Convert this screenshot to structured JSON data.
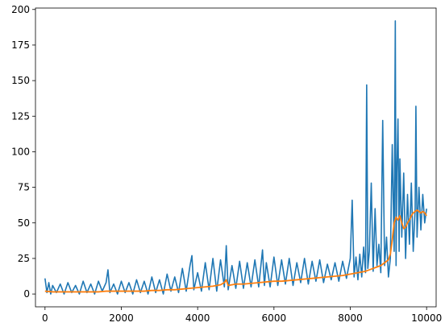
{
  "chart_data": {
    "type": "line",
    "title": "",
    "xlabel": "",
    "ylabel": "",
    "xlim": [
      -250,
      10250
    ],
    "ylim": [
      -9,
      201
    ],
    "x_ticks": [
      0,
      2000,
      4000,
      6000,
      8000,
      10000
    ],
    "y_ticks": [
      0,
      25,
      50,
      75,
      100,
      125,
      150,
      175,
      200
    ],
    "grid": false,
    "legend": "none",
    "series": [
      {
        "color": "#1f77b4",
        "description": "per-episode value (noisy)",
        "x": [
          0,
          50,
          100,
          150,
          200,
          300,
          400,
          500,
          600,
          700,
          800,
          900,
          1000,
          1100,
          1200,
          1300,
          1400,
          1500,
          1600,
          1650,
          1700,
          1800,
          1900,
          2000,
          2100,
          2200,
          2300,
          2400,
          2500,
          2600,
          2700,
          2800,
          2900,
          3000,
          3100,
          3200,
          3300,
          3400,
          3500,
          3600,
          3700,
          3800,
          3850,
          3900,
          4000,
          4100,
          4200,
          4300,
          4400,
          4500,
          4600,
          4700,
          4750,
          4800,
          4900,
          5000,
          5100,
          5200,
          5300,
          5400,
          5500,
          5600,
          5700,
          5750,
          5800,
          5900,
          6000,
          6100,
          6200,
          6300,
          6400,
          6500,
          6600,
          6700,
          6800,
          6900,
          7000,
          7100,
          7200,
          7300,
          7400,
          7500,
          7600,
          7700,
          7800,
          7900,
          8000,
          8050,
          8100,
          8150,
          8200,
          8250,
          8300,
          8350,
          8400,
          8430,
          8460,
          8500,
          8550,
          8600,
          8650,
          8700,
          8750,
          8800,
          8850,
          8900,
          8950,
          9000,
          9050,
          9100,
          9150,
          9180,
          9200,
          9220,
          9250,
          9280,
          9300,
          9350,
          9400,
          9450,
          9500,
          9550,
          9600,
          9650,
          9700,
          9720,
          9750,
          9800,
          9850,
          9900,
          9950,
          10000
        ],
        "y": [
          11,
          1,
          8,
          0,
          6,
          1,
          7,
          0,
          8,
          1,
          6,
          0,
          9,
          1,
          7,
          0,
          9,
          2,
          8,
          17,
          1,
          7,
          0,
          9,
          1,
          8,
          0,
          10,
          1,
          9,
          0,
          12,
          1,
          10,
          0,
          14,
          2,
          12,
          1,
          18,
          2,
          20,
          27,
          3,
          15,
          2,
          22,
          3,
          25,
          2,
          24,
          5,
          34,
          3,
          20,
          4,
          23,
          4,
          22,
          5,
          24,
          5,
          31,
          6,
          22,
          5,
          26,
          6,
          24,
          7,
          25,
          6,
          22,
          8,
          25,
          7,
          23,
          9,
          24,
          8,
          21,
          10,
          22,
          9,
          23,
          11,
          25,
          66,
          12,
          26,
          10,
          28,
          12,
          33,
          15,
          147,
          18,
          30,
          78,
          16,
          60,
          20,
          35,
          15,
          122,
          20,
          40,
          12,
          25,
          105,
          30,
          192,
          20,
          85,
          123,
          30,
          95,
          40,
          85,
          25,
          70,
          35,
          78,
          30,
          60,
          132,
          40,
          75,
          45,
          70,
          50,
          60
        ]
      },
      {
        "color": "#ff7f0e",
        "description": "moving average",
        "x": [
          0,
          200,
          400,
          600,
          800,
          1000,
          1200,
          1400,
          1600,
          1800,
          2000,
          2200,
          2400,
          2600,
          2800,
          3000,
          3200,
          3400,
          3600,
          3800,
          4000,
          4200,
          4400,
          4600,
          4700,
          4750,
          4800,
          4900,
          5000,
          5200,
          5400,
          5600,
          5800,
          6000,
          6200,
          6400,
          6600,
          6800,
          7000,
          7200,
          7400,
          7600,
          7800,
          8000,
          8200,
          8400,
          8500,
          8600,
          8700,
          8800,
          8900,
          9000,
          9050,
          9100,
          9150,
          9200,
          9250,
          9300,
          9350,
          9400,
          9450,
          9500,
          9550,
          9600,
          9650,
          9700,
          9750,
          9800,
          9850,
          9900,
          9950,
          10000
        ],
        "y": [
          2,
          1.5,
          1.5,
          1.5,
          1.5,
          1.5,
          1.5,
          1.5,
          2,
          2,
          2,
          2,
          2,
          2,
          2.5,
          2.5,
          3,
          3,
          3.5,
          4,
          4.5,
          5,
          5.5,
          6.5,
          8,
          10,
          6,
          6.5,
          7,
          7,
          7.5,
          8,
          8.5,
          9,
          9,
          9.5,
          10,
          10.5,
          11,
          11.5,
          12,
          12.5,
          13,
          14,
          15,
          16,
          17,
          18,
          19,
          20,
          22,
          24,
          28,
          38,
          50,
          54,
          52,
          55,
          50,
          46,
          47,
          50,
          52,
          55,
          57,
          58,
          59,
          58,
          57,
          58,
          57,
          55
        ]
      }
    ]
  }
}
